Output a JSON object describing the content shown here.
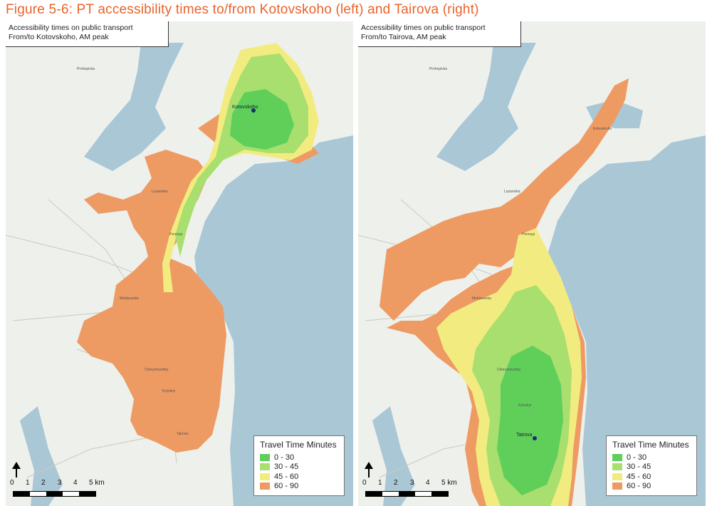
{
  "figure_title": "Figure 5-6: PT accessibility times to/from Kotovskoho (left) and Tairova (right)",
  "colors": {
    "band_0_30": "#5fcf5a",
    "band_30_45": "#a8df6e",
    "band_45_60": "#f2ec80",
    "band_60_90": "#ee9a63",
    "water": "#aac7d6",
    "land": "#eef0ec",
    "title_orange": "#e8632c"
  },
  "maps": [
    {
      "id": "left",
      "title_line1": "Accessibility times on public transport",
      "title_line2": "From/to Kotovskoho, AM peak",
      "origin_label": "Kotovskoho"
    },
    {
      "id": "right",
      "title_line1": "Accessibility times on public transport",
      "title_line2": "From/to Tairova, AM peak",
      "origin_label": "Tairova"
    }
  ],
  "legend": {
    "title": "Travel Time Minutes",
    "items": [
      {
        "label": "0 - 30",
        "color": "#5fcf5a"
      },
      {
        "label": "30 - 45",
        "color": "#a8df6e"
      },
      {
        "label": "45 - 60",
        "color": "#f2ec80"
      },
      {
        "label": "60 - 90",
        "color": "#ee9a63"
      }
    ]
  },
  "scale": {
    "labels": [
      "0",
      "1",
      "2",
      "3",
      "4",
      "5 km"
    ]
  },
  "map_labels": {
    "left": [
      "Prohopivka",
      "Luzanivka",
      "Peresyp",
      "Moldavanka",
      "Cheryomushky",
      "Kyivskyi",
      "Tairova"
    ],
    "right": [
      "Prohopivka",
      "Luzanivka",
      "Peresyp",
      "Moldavanka",
      "Cheryomushky",
      "Kyivskyi",
      "Kotovskoho"
    ]
  }
}
